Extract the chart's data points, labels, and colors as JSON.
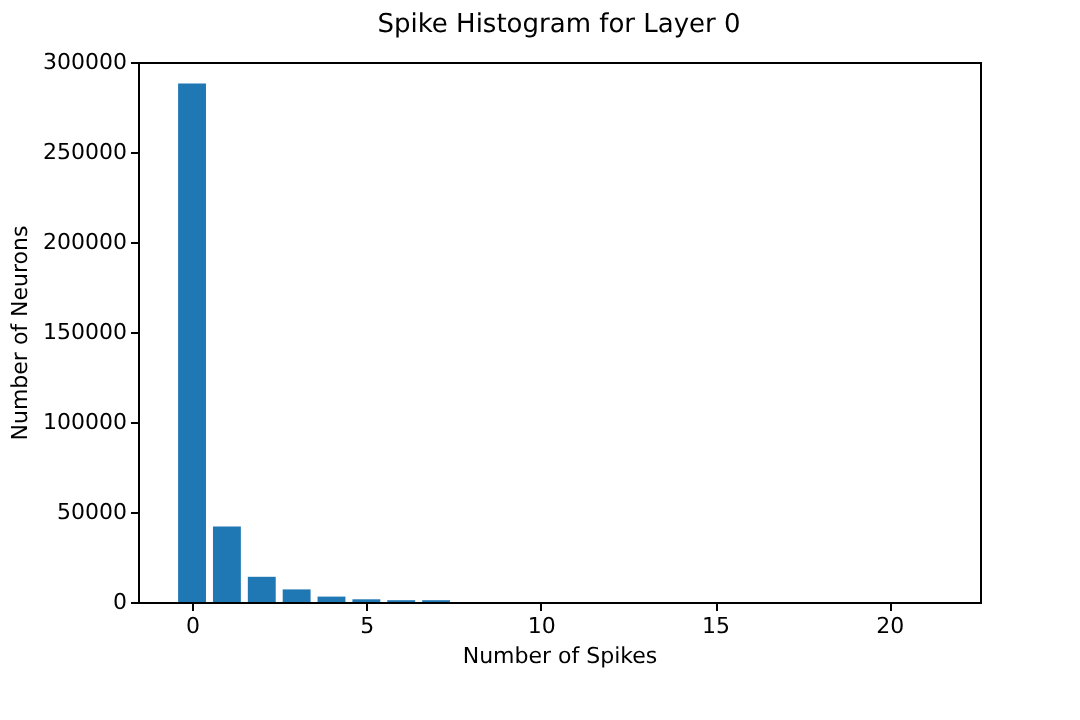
{
  "chart_data": {
    "type": "bar",
    "title": "Spike Histogram for Layer 0",
    "xlabel": "Number of Spikes",
    "ylabel": "Number of Neurons",
    "x": [
      0,
      1,
      2,
      3,
      4,
      5,
      6,
      7
    ],
    "values": [
      288000,
      42000,
      14000,
      7000,
      3000,
      1500,
      1000,
      1000
    ],
    "color": "#1f77b4",
    "xlim": [
      -1.55,
      22.6
    ],
    "xticks": [
      0,
      5,
      10,
      15,
      20
    ],
    "ylim": [
      0,
      300000
    ],
    "yticks": [
      0,
      50000,
      100000,
      150000,
      200000,
      250000,
      300000
    ],
    "grid": false
  }
}
